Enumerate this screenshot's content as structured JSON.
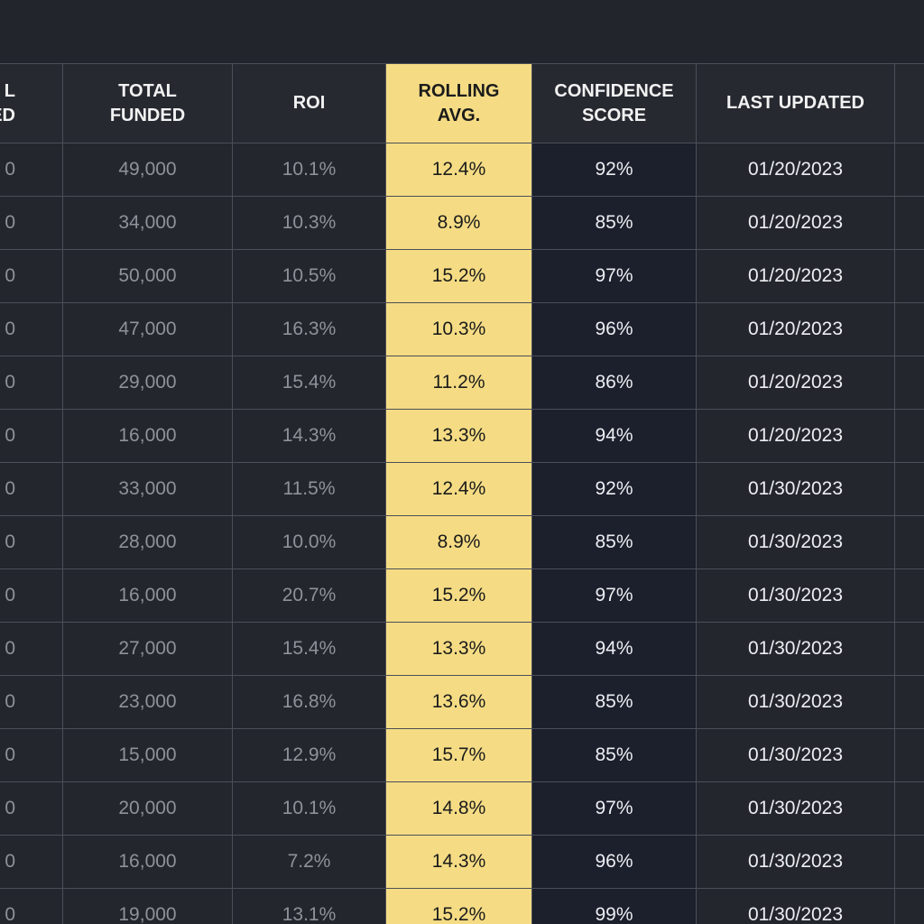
{
  "table": {
    "headers": [
      [
        "L",
        "ED"
      ],
      [
        "TOTAL",
        "FUNDED"
      ],
      [
        "ROI"
      ],
      [
        "ROLLING",
        "AVG."
      ],
      [
        "CONFIDENCE",
        "SCORE"
      ],
      [
        "LAST UPDATED"
      ]
    ],
    "rows": [
      [
        "0",
        "49,000",
        "10.1%",
        "12.4%",
        "92%",
        "01/20/2023"
      ],
      [
        "0",
        "34,000",
        "10.3%",
        "8.9%",
        "85%",
        "01/20/2023"
      ],
      [
        "0",
        "50,000",
        "10.5%",
        "15.2%",
        "97%",
        "01/20/2023"
      ],
      [
        "0",
        "47,000",
        "16.3%",
        "10.3%",
        "96%",
        "01/20/2023"
      ],
      [
        "0",
        "29,000",
        "15.4%",
        "11.2%",
        "86%",
        "01/20/2023"
      ],
      [
        "0",
        "16,000",
        "14.3%",
        "13.3%",
        "94%",
        "01/20/2023"
      ],
      [
        "0",
        "33,000",
        "11.5%",
        "12.4%",
        "92%",
        "01/30/2023"
      ],
      [
        "0",
        "28,000",
        "10.0%",
        "8.9%",
        "85%",
        "01/30/2023"
      ],
      [
        "0",
        "16,000",
        "20.7%",
        "15.2%",
        "97%",
        "01/30/2023"
      ],
      [
        "0",
        "27,000",
        "15.4%",
        "13.3%",
        "94%",
        "01/30/2023"
      ],
      [
        "0",
        "23,000",
        "16.8%",
        "13.6%",
        "85%",
        "01/30/2023"
      ],
      [
        "0",
        "15,000",
        "12.9%",
        "15.7%",
        "85%",
        "01/30/2023"
      ],
      [
        "0",
        "20,000",
        "10.1%",
        "14.8%",
        "97%",
        "01/30/2023"
      ],
      [
        "0",
        "16,000",
        "7.2%",
        "14.3%",
        "96%",
        "01/30/2023"
      ],
      [
        "0",
        "19,000",
        "13.1%",
        "15.2%",
        "99%",
        "01/30/2023"
      ]
    ]
  }
}
